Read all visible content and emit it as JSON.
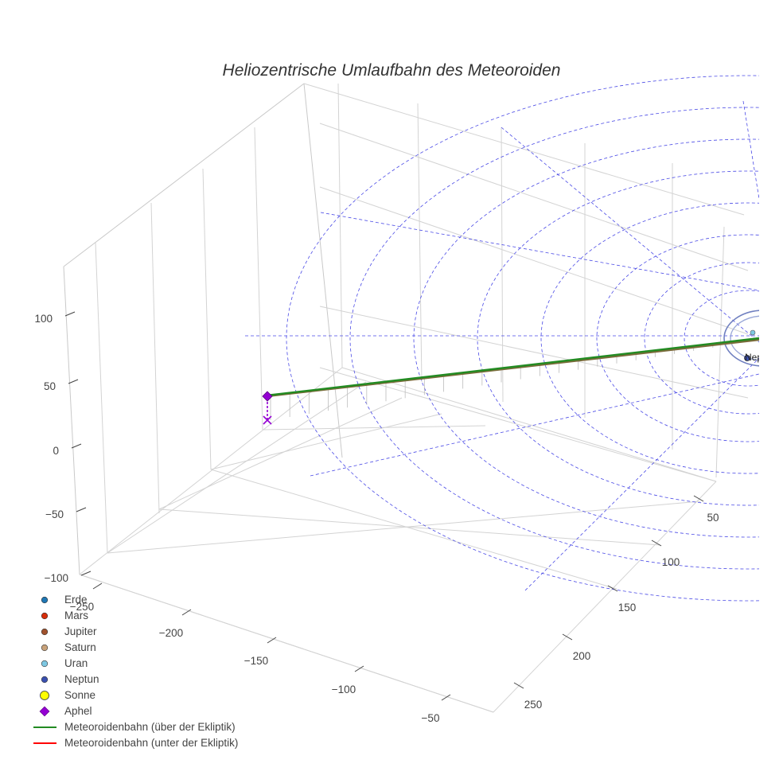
{
  "chart_data": {
    "type": "scatter3d",
    "title": "Heliozentrische Umlaufbahn des Meteoroiden",
    "axes": {
      "x": {
        "ticks": [
          -250,
          -200,
          -150,
          -100,
          -50
        ]
      },
      "y": {
        "ticks": [
          50,
          100,
          150,
          200,
          250
        ]
      },
      "z": {
        "ticks": [
          100,
          50,
          0,
          -50,
          -100
        ]
      }
    },
    "series": [
      {
        "name": "Erde",
        "color": "#1f77b4",
        "marker": "circle"
      },
      {
        "name": "Mars",
        "color": "#d62d0a",
        "marker": "circle"
      },
      {
        "name": "Jupiter",
        "color": "#a0522d",
        "marker": "circle"
      },
      {
        "name": "Saturn",
        "color": "#c8a27a",
        "marker": "circle"
      },
      {
        "name": "Uran",
        "color": "#7ec8e3",
        "marker": "circle"
      },
      {
        "name": "Neptun",
        "color": "#3a50b0",
        "marker": "circle"
      },
      {
        "name": "Sonne",
        "color": "#ffff00",
        "marker": "circle-large"
      },
      {
        "name": "Aphel",
        "color": "#9400d3",
        "marker": "diamond"
      },
      {
        "name": "Meteoroidenbahn (über der Ekliptik)",
        "color": "#228b22",
        "marker": "line"
      },
      {
        "name": "Meteoroidenbahn (unter der Ekliptik)",
        "color": "#ff0000",
        "marker": "line"
      }
    ],
    "point_labels": [
      "Sa",
      "Neptun"
    ],
    "grid": true,
    "legend_position": "bottom-left"
  }
}
